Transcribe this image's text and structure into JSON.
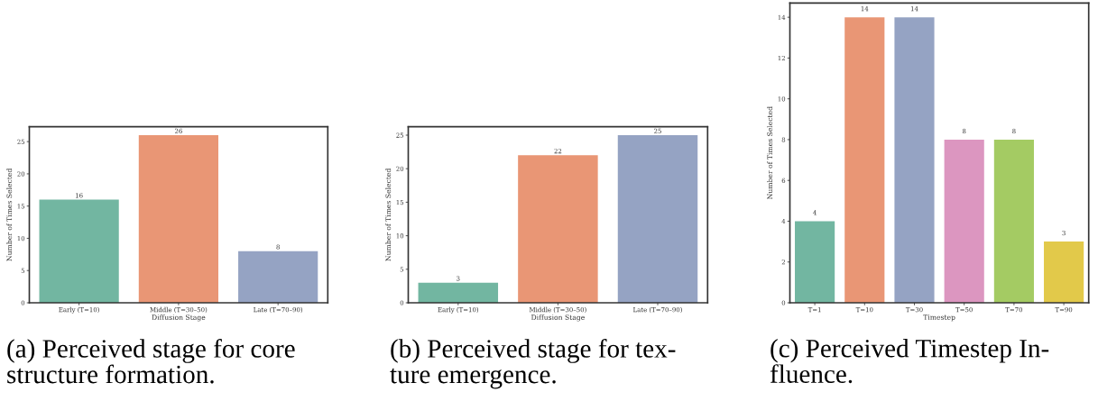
{
  "chart_data": [
    {
      "type": "bar",
      "categories": [
        "Early (T=10)",
        "Middle (T=30–50)",
        "Late (T=70–90)"
      ],
      "values": [
        16,
        26,
        8
      ],
      "colors": [
        "#72b6a1",
        "#e99675",
        "#95a3c3"
      ],
      "xlabel": "Diffusion Stage",
      "ylabel": "Number of Times Selected",
      "ylim": [
        0,
        27.3
      ],
      "yticks": [
        0,
        5,
        10,
        15,
        20,
        25
      ],
      "data_labels": true,
      "annotations": [
        "(a) Perceived stage for core\nstructure formation."
      ]
    },
    {
      "type": "bar",
      "categories": [
        "Early (T=10)",
        "Middle (T=30–50)",
        "Late (T=70–90)"
      ],
      "values": [
        3,
        22,
        25
      ],
      "colors": [
        "#72b6a1",
        "#e99675",
        "#95a3c3"
      ],
      "xlabel": "Diffusion Stage",
      "ylabel": "Number of Times Selected",
      "ylim": [
        0,
        26.25
      ],
      "yticks": [
        0,
        5,
        10,
        15,
        20,
        25
      ],
      "data_labels": true,
      "annotations": [
        "(b) Perceived stage for tex-\nture emergence."
      ]
    },
    {
      "type": "bar",
      "categories": [
        "T=1",
        "T=10",
        "T=30",
        "T=50",
        "T=70",
        "T=90"
      ],
      "values": [
        4,
        14,
        14,
        8,
        8,
        3
      ],
      "colors": [
        "#72b6a1",
        "#e99675",
        "#95a3c3",
        "#dc96c0",
        "#a4cb63",
        "#e2c94a"
      ],
      "xlabel": "Timestep",
      "ylabel": "Number of Times Selected",
      "ylim": [
        0,
        14.7
      ],
      "yticks": [
        0,
        2,
        4,
        6,
        8,
        10,
        12,
        14
      ],
      "data_labels": true,
      "annotations": [
        "(c) Perceived Timestep In-\nfluence."
      ]
    }
  ]
}
